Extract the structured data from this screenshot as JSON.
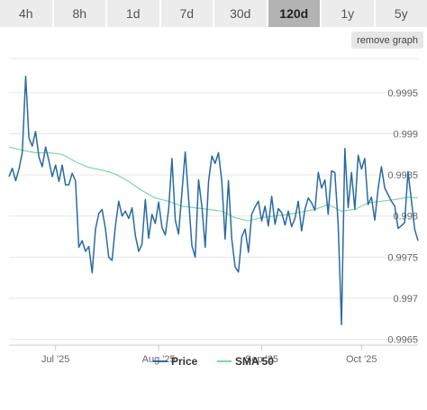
{
  "timeframe_tabs": [
    {
      "label": "4h",
      "active": false
    },
    {
      "label": "8h",
      "active": false
    },
    {
      "label": "1d",
      "active": false
    },
    {
      "label": "7d",
      "active": false
    },
    {
      "label": "30d",
      "active": false
    },
    {
      "label": "120d",
      "active": true
    },
    {
      "label": "1y",
      "active": false
    },
    {
      "label": "5y",
      "active": false
    }
  ],
  "remove_graph_label": "remove graph",
  "colors": {
    "price": "#2a6aa3",
    "sma": "#7fd6a2",
    "active_tab": "#b3b3b3",
    "tab": "#ececec"
  },
  "chart_data": {
    "type": "line",
    "title": "",
    "xlabel": "",
    "ylabel": "",
    "x_ticks": [
      {
        "label": "Jul '25",
        "day": 14
      },
      {
        "label": "Aug '25",
        "day": 45
      },
      {
        "label": "Sep '25",
        "day": 76
      },
      {
        "label": "Oct '25",
        "day": 106
      }
    ],
    "y_ticks": [
      {
        "label": "0.9965",
        "value": 0.9965
      },
      {
        "label": "0.997",
        "value": 0.997
      },
      {
        "label": "0.9975",
        "value": 0.9975
      },
      {
        "label": "0.998",
        "value": 0.998
      },
      {
        "label": "0.9985",
        "value": 0.9985
      },
      {
        "label": "0.999",
        "value": 0.999
      },
      {
        "label": "0.9995",
        "value": 0.9995
      }
    ],
    "xlim": [
      0,
      123
    ],
    "ylim": [
      0.99643,
      0.99997
    ],
    "grid": "horizontal",
    "legend": "bottom-center",
    "series": [
      {
        "name": "Price",
        "color": "#2a6aa3",
        "points": [
          [
            0,
            0.99848
          ],
          [
            1,
            0.99858
          ],
          [
            2,
            0.99843
          ],
          [
            3,
            0.99857
          ],
          [
            4,
            0.99878
          ],
          [
            5,
            0.9997
          ],
          [
            6,
            0.99895
          ],
          [
            7,
            0.99885
          ],
          [
            8,
            0.99903
          ],
          [
            9,
            0.99872
          ],
          [
            10,
            0.9986
          ],
          [
            11,
            0.99884
          ],
          [
            12,
            0.99867
          ],
          [
            13,
            0.99848
          ],
          [
            14,
            0.99862
          ],
          [
            15,
            0.99842
          ],
          [
            16,
            0.99862
          ],
          [
            17,
            0.99838
          ],
          [
            18,
            0.99838
          ],
          [
            19,
            0.99852
          ],
          [
            20,
            0.99843
          ],
          [
            21,
            0.99762
          ],
          [
            22,
            0.9977
          ],
          [
            23,
            0.99757
          ],
          [
            24,
            0.99763
          ],
          [
            25,
            0.99731
          ],
          [
            26,
            0.99784
          ],
          [
            27,
            0.99803
          ],
          [
            28,
            0.99808
          ],
          [
            29,
            0.99785
          ],
          [
            30,
            0.9975
          ],
          [
            31,
            0.99746
          ],
          [
            32,
            0.99788
          ],
          [
            33,
            0.99818
          ],
          [
            34,
            0.998
          ],
          [
            35,
            0.99806
          ],
          [
            36,
            0.99797
          ],
          [
            37,
            0.9981
          ],
          [
            38,
            0.99776
          ],
          [
            39,
            0.99757
          ],
          [
            40,
            0.99766
          ],
          [
            41,
            0.9982
          ],
          [
            42,
            0.99773
          ],
          [
            43,
            0.99802
          ],
          [
            44,
            0.99791
          ],
          [
            45,
            0.99817
          ],
          [
            46,
            0.99786
          ],
          [
            47,
            0.99777
          ],
          [
            48,
            0.99808
          ],
          [
            49,
            0.9987
          ],
          [
            50,
            0.99795
          ],
          [
            51,
            0.99778
          ],
          [
            52,
            0.99828
          ],
          [
            53,
            0.99878
          ],
          [
            54,
            0.99822
          ],
          [
            55,
            0.99764
          ],
          [
            56,
            0.9975
          ],
          [
            57,
            0.99844
          ],
          [
            58,
            0.99812
          ],
          [
            59,
            0.99762
          ],
          [
            60,
            0.99842
          ],
          [
            61,
            0.99873
          ],
          [
            62,
            0.99864
          ],
          [
            63,
            0.99877
          ],
          [
            64,
            0.99843
          ],
          [
            65,
            0.99772
          ],
          [
            66,
            0.99843
          ],
          [
            67,
            0.99772
          ],
          [
            68,
            0.99738
          ],
          [
            69,
            0.99732
          ],
          [
            70,
            0.99775
          ],
          [
            71,
            0.99784
          ],
          [
            72,
            0.99756
          ],
          [
            73,
            0.99802
          ],
          [
            74,
            0.99811
          ],
          [
            75,
            0.99818
          ],
          [
            76,
            0.99794
          ],
          [
            77,
            0.99812
          ],
          [
            78,
            0.99788
          ],
          [
            79,
            0.99824
          ],
          [
            80,
            0.9979
          ],
          [
            81,
            0.99809
          ],
          [
            82,
            0.99804
          ],
          [
            83,
            0.99789
          ],
          [
            84,
            0.99806
          ],
          [
            85,
            0.99787
          ],
          [
            86,
            0.99797
          ],
          [
            87,
            0.99818
          ],
          [
            88,
            0.99782
          ],
          [
            89,
            0.99808
          ],
          [
            90,
            0.99822
          ],
          [
            91,
            0.99816
          ],
          [
            92,
            0.99807
          ],
          [
            93,
            0.99853
          ],
          [
            94,
            0.99834
          ],
          [
            95,
            0.99844
          ],
          [
            96,
            0.99802
          ],
          [
            97,
            0.99855
          ],
          [
            98,
            0.99853
          ],
          [
            99,
            0.9979
          ],
          [
            100,
            0.99668
          ],
          [
            101,
            0.99882
          ],
          [
            102,
            0.9981
          ],
          [
            103,
            0.99853
          ],
          [
            104,
            0.99808
          ],
          [
            105,
            0.99874
          ],
          [
            106,
            0.99857
          ],
          [
            107,
            0.9987
          ],
          [
            108,
            0.99814
          ],
          [
            109,
            0.99823
          ],
          [
            110,
            0.99795
          ],
          [
            111,
            0.99833
          ],
          [
            112,
            0.9986
          ],
          [
            113,
            0.99834
          ],
          [
            114,
            0.99826
          ],
          [
            115,
            0.99818
          ],
          [
            116,
            0.99812
          ],
          [
            117,
            0.99785
          ],
          [
            118,
            0.99788
          ],
          [
            119,
            0.99792
          ],
          [
            120,
            0.99854
          ],
          [
            121,
            0.9982
          ],
          [
            122,
            0.99784
          ],
          [
            123,
            0.9977
          ]
        ]
      },
      {
        "name": "SMA 50",
        "color": "#7fd6a2",
        "points": [
          [
            0,
            0.99884
          ],
          [
            4,
            0.9988
          ],
          [
            8,
            0.99877
          ],
          [
            12,
            0.99877
          ],
          [
            16,
            0.99875
          ],
          [
            20,
            0.99866
          ],
          [
            24,
            0.99859
          ],
          [
            28,
            0.99856
          ],
          [
            32,
            0.99851
          ],
          [
            36,
            0.99842
          ],
          [
            40,
            0.99831
          ],
          [
            44,
            0.99822
          ],
          [
            48,
            0.99818
          ],
          [
            52,
            0.99812
          ],
          [
            56,
            0.9981
          ],
          [
            60,
            0.99808
          ],
          [
            64,
            0.99806
          ],
          [
            68,
            0.99798
          ],
          [
            72,
            0.99794
          ],
          [
            76,
            0.99798
          ],
          [
            80,
            0.998
          ],
          [
            84,
            0.99802
          ],
          [
            88,
            0.99805
          ],
          [
            92,
            0.99808
          ],
          [
            96,
            0.99814
          ],
          [
            100,
            0.99806
          ],
          [
            104,
            0.99808
          ],
          [
            108,
            0.99816
          ],
          [
            112,
            0.99818
          ],
          [
            116,
            0.9982
          ],
          [
            120,
            0.99823
          ],
          [
            123,
            0.99822
          ]
        ]
      }
    ]
  }
}
